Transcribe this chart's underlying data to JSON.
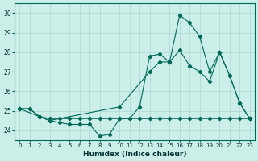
{
  "xlabel": "Humidex (Indice chaleur)",
  "background_color": "#cceee8",
  "grid_color": "#aad8d0",
  "line_color": "#006858",
  "xlim": [
    -0.5,
    23.5
  ],
  "ylim": [
    23.5,
    30.5
  ],
  "xticks": [
    0,
    1,
    2,
    3,
    4,
    5,
    6,
    7,
    8,
    9,
    10,
    11,
    12,
    13,
    14,
    15,
    16,
    17,
    18,
    19,
    20,
    21,
    22,
    23
  ],
  "yticks": [
    24,
    25,
    26,
    27,
    28,
    29,
    30
  ],
  "series": [
    {
      "x": [
        0,
        1,
        2,
        3,
        4,
        5,
        6,
        7,
        8,
        9,
        10,
        11,
        12,
        13,
        14,
        15,
        16,
        17,
        18,
        19,
        20,
        21,
        22,
        23
      ],
      "y": [
        25.1,
        25.1,
        24.7,
        24.6,
        24.6,
        24.6,
        24.6,
        24.6,
        24.6,
        24.6,
        24.6,
        24.6,
        24.6,
        24.6,
        24.6,
        24.6,
        24.6,
        24.6,
        24.6,
        24.6,
        24.6,
        24.6,
        24.6,
        24.6
      ]
    },
    {
      "x": [
        0,
        1,
        2,
        3,
        4,
        5,
        6,
        7,
        8,
        9,
        10,
        11,
        12,
        13,
        14,
        15,
        16,
        17,
        18,
        19,
        20,
        21,
        22,
        23
      ],
      "y": [
        25.1,
        25.1,
        24.7,
        24.5,
        24.4,
        24.3,
        24.3,
        24.3,
        23.7,
        23.8,
        24.6,
        24.6,
        25.2,
        27.8,
        27.9,
        27.5,
        29.9,
        29.5,
        28.8,
        27.0,
        28.0,
        26.8,
        25.4,
        24.6
      ]
    },
    {
      "x": [
        0,
        2,
        3,
        10,
        13,
        14,
        15,
        16,
        17,
        18,
        19,
        20,
        21,
        22,
        23
      ],
      "y": [
        25.1,
        24.7,
        24.5,
        25.2,
        27.0,
        27.5,
        27.5,
        28.1,
        27.3,
        27.0,
        26.5,
        28.0,
        26.8,
        25.4,
        24.6
      ]
    }
  ]
}
